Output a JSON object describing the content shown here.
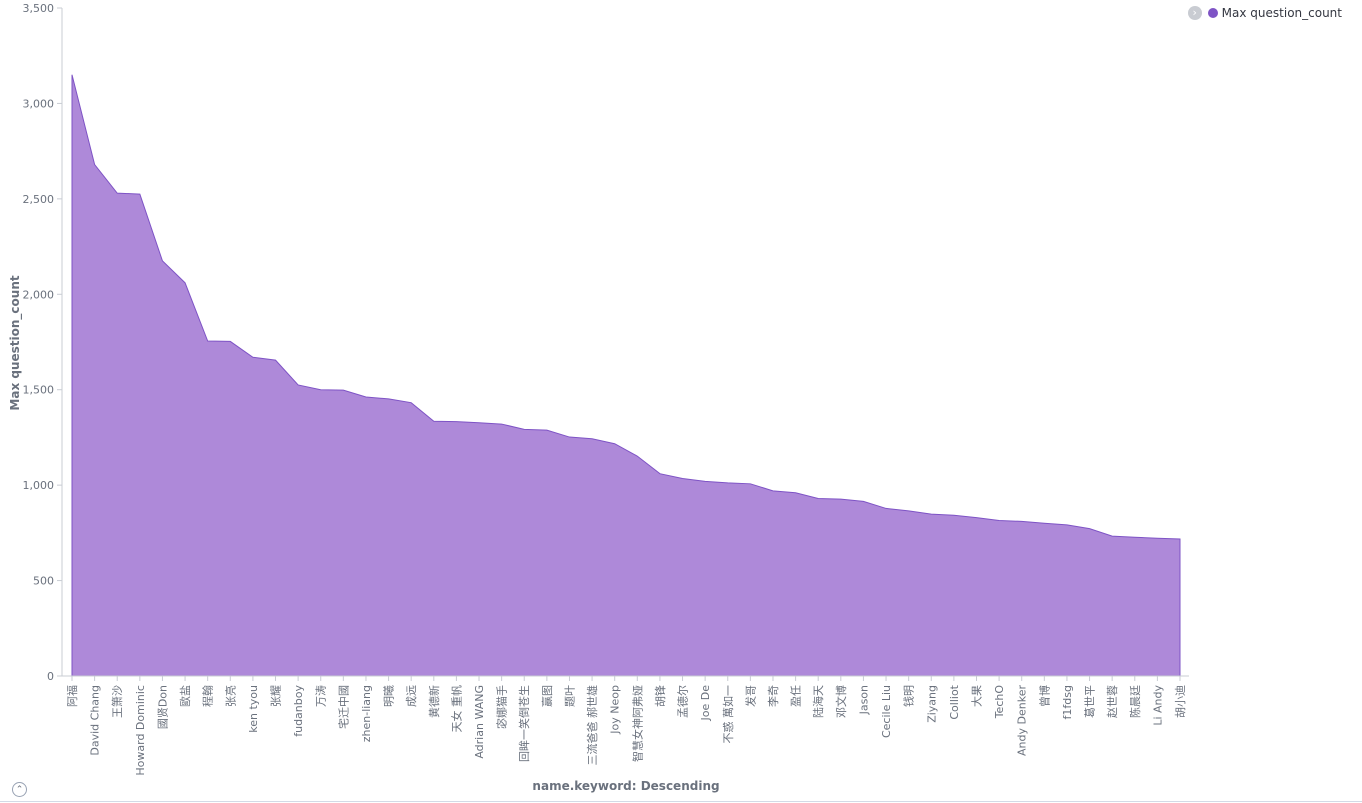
{
  "legend": {
    "toggle_icon": "chevron-right-icon",
    "toggle_glyph": "›",
    "label": "Max question_count",
    "color": "#7e53c5"
  },
  "collapse": {
    "icon": "chevron-up-icon",
    "glyph": "⌃"
  },
  "colors": {
    "area_fill": "#ae89d9",
    "area_stroke": "#7e53c5",
    "axis": "#c8ccd3"
  },
  "chart_data": {
    "type": "area",
    "xlabel": "name.keyword: Descending",
    "ylabel": "Max question_count",
    "ylim": [
      0,
      3500
    ],
    "yticks": [
      0,
      500,
      1000,
      1500,
      2000,
      2500,
      3000,
      3500
    ],
    "grid": false,
    "legend_position": "top-right",
    "series": [
      {
        "name": "Max question_count",
        "labels": [
          "阿福",
          "David Chang",
          "王箫沙",
          "Howard Dominic",
          "國贤Don",
          "歐盐",
          "程翰",
          "张亮",
          "ken tyou",
          "张耀",
          "fudanboy",
          "万涛",
          "宅迁中國",
          "zhen-liang",
          "明曦",
          "成远",
          "黄德新",
          "天女 重帆",
          "Adrian WANG",
          "宓娜猫手",
          "回眸一笑倒苍生",
          "赢图",
          "题叶",
          "三流爸爸 郝世雄",
          "Joy Neop",
          "智慧女神阿弗娅",
          "胡锋",
          "孟德尔",
          "Joe De",
          "不惑 萬如一",
          "发哥",
          "李奇",
          "盈任",
          "陆海天",
          "邓文博",
          "Jason",
          "Cecile Liu",
          "钱明",
          "Ziyang",
          "Colliot",
          "大果",
          "TechO",
          "Andy Denker",
          "曾博",
          "f1fdsg",
          "葛世平",
          "赵世蓉",
          "陈晨廷",
          "Li Andy",
          "胡小迪"
        ],
        "values": [
          3150,
          2680,
          2530,
          2525,
          2175,
          2060,
          1755,
          1753,
          1670,
          1655,
          1525,
          1500,
          1498,
          1462,
          1452,
          1432,
          1335,
          1333,
          1327,
          1320,
          1292,
          1288,
          1252,
          1243,
          1217,
          1152,
          1060,
          1035,
          1020,
          1012,
          1007,
          970,
          960,
          930,
          927,
          915,
          878,
          865,
          848,
          842,
          830,
          815,
          810,
          800,
          792,
          772,
          733,
          727,
          722,
          718
        ]
      }
    ]
  }
}
